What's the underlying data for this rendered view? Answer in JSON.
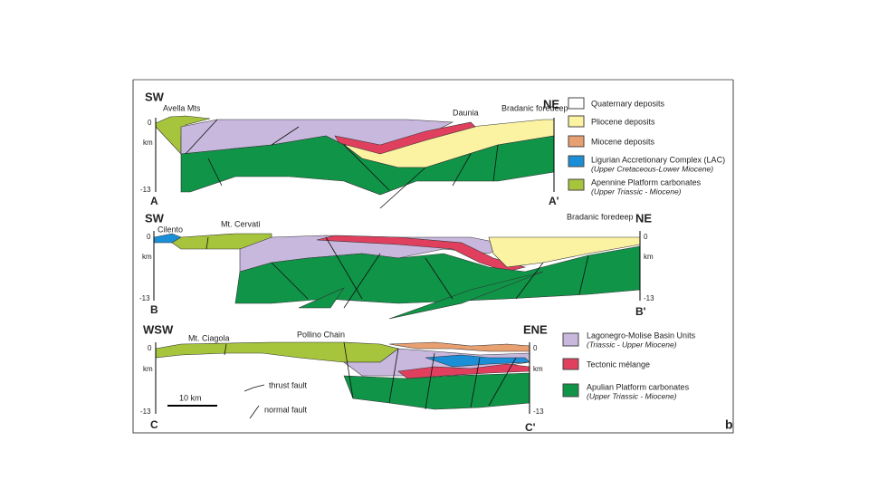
{
  "sections": [
    {
      "left_direction": "SW",
      "right_direction": "NE",
      "left_end": "A",
      "right_end": "A'",
      "places": [
        "Avella Mts",
        "Daunia",
        "Bradanic foredeep"
      ],
      "left_axis": [
        "0",
        "km",
        "-13"
      ]
    },
    {
      "left_direction": "SW",
      "right_direction": "NE",
      "left_end": "B",
      "right_end": "B'",
      "places": [
        "Cilento",
        "Mt. Cervati",
        "Bradanic foredeep"
      ],
      "left_axis": [
        "0",
        "km",
        "-13"
      ],
      "right_axis": [
        "0",
        "km",
        "-13"
      ]
    },
    {
      "left_direction": "WSW",
      "right_direction": "ENE",
      "left_end": "C",
      "right_end": "C'",
      "places": [
        "Mt. Ciagola",
        "Pollino Chain"
      ],
      "left_axis": [
        "0",
        "km",
        "-13"
      ],
      "right_axis": [
        "0",
        "km",
        "-13"
      ]
    }
  ],
  "legend_top": [
    {
      "label": "Quaternary deposits"
    },
    {
      "label": "Pliocene deposits"
    },
    {
      "label": "Miocene deposits"
    },
    {
      "label": "Ligurian Accretionary Complex (LAC)",
      "sublabel": "(Upper Cretaceous-Lower Miocene)"
    },
    {
      "label": "Apennine Platform carbonates",
      "sublabel": "(Upper Triassic - Miocene)"
    }
  ],
  "legend_bottom": [
    {
      "label": "Lagonegro-Molise Basin Units",
      "sublabel": "(Triassic - Upper Miocene)"
    },
    {
      "label": "Tectonic mélange"
    },
    {
      "label": "Apulian Platform carbonates",
      "sublabel": "(Upper Triassic - Miocene)"
    }
  ],
  "scale_bar": "10 km",
  "fault_legend": [
    "thrust fault",
    "normal fault"
  ],
  "panel_label": "b"
}
